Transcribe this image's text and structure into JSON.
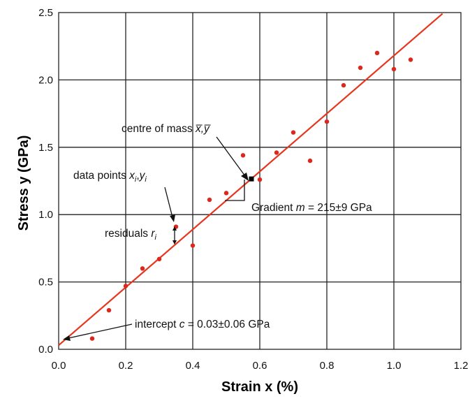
{
  "chart_data": {
    "type": "scatter",
    "xlabel": "Strain x (%)",
    "ylabel": "Stress y (GPa)",
    "xlim": [
      0,
      1.2
    ],
    "ylim": [
      0,
      2.5
    ],
    "xticks": [
      "0.0",
      "0.2",
      "0.4",
      "0.6",
      "0.8",
      "1.0",
      "1.2"
    ],
    "yticks": [
      "0.0",
      "0.5",
      "1.0",
      "1.5",
      "2.0",
      "2.5"
    ],
    "grid": true,
    "points": {
      "x": [
        0.1,
        0.15,
        0.2,
        0.25,
        0.3,
        0.35,
        0.4,
        0.45,
        0.5,
        0.55,
        0.6,
        0.65,
        0.7,
        0.75,
        0.8,
        0.85,
        0.9,
        0.95,
        1.0,
        1.05
      ],
      "y": [
        0.08,
        0.29,
        0.47,
        0.6,
        0.67,
        0.91,
        0.77,
        1.11,
        1.16,
        1.44,
        1.26,
        1.46,
        1.61,
        1.4,
        1.69,
        1.96,
        2.09,
        2.2,
        2.08,
        2.15
      ]
    },
    "fit": {
      "slope": 2.15,
      "intercept": 0.03,
      "x_start": 0.0,
      "x_end": 1.145
    },
    "centre_of_mass": {
      "x": 0.575,
      "y": 1.265
    },
    "colors": {
      "points": "#e0261b",
      "fit_line": "#e8341c"
    },
    "annotations": {
      "centre_of_mass": {
        "text": "centre of mass ",
        "var": "x̅,y̅"
      },
      "data_points": {
        "text": "data points ",
        "x": "x",
        "i1": "i",
        "comma": ",",
        "y": "y",
        "i2": "i"
      },
      "residuals": {
        "text": "residuals ",
        "r": "r",
        "i": "i"
      },
      "gradient": {
        "text": "Gradient ",
        "m": "m",
        "value": " = 215±9 GPa"
      },
      "intercept": {
        "text": "intercept ",
        "c": "c",
        "value": " = 0.03±0.06 GPa"
      }
    }
  }
}
